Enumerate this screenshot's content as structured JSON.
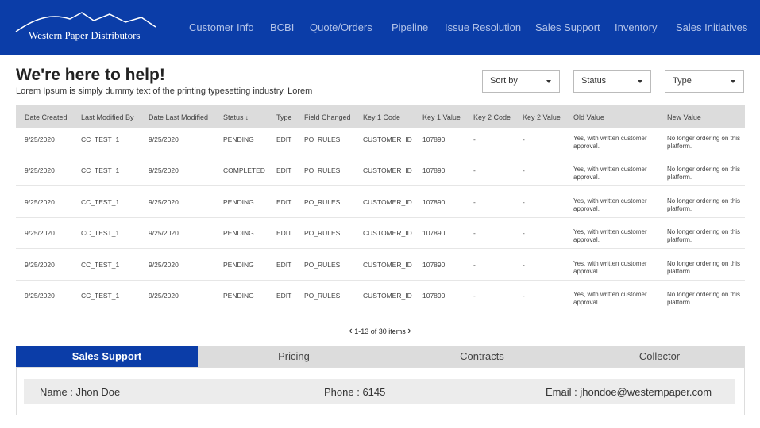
{
  "header": {
    "logo": "Western Paper Distributors",
    "nav": [
      "Customer Info",
      "BCBI",
      "Quote/Orders",
      "Pipeline",
      "Issue Resolution",
      "Sales Support",
      "Inventory",
      "Sales Initiatives"
    ]
  },
  "page": {
    "title": "We're here to help!",
    "subtitle": "Lorem Ipsum is simply dummy text of the printing typesetting industry. Lorem"
  },
  "filters": [
    "Sort by",
    "Status",
    "Type"
  ],
  "table": {
    "columns": [
      "Date Created",
      "Last Modified By",
      "Date Last Modified",
      "Status",
      "Type",
      "Field Changed",
      "Key 1 Code",
      "Key 1 Value",
      "Key 2 Code",
      "Key 2 Value",
      "Old Value",
      "New Value"
    ],
    "rows": [
      [
        "9/25/2020",
        "CC_TEST_1",
        "9/25/2020",
        "PENDING",
        "EDIT",
        "PO_RULES",
        "CUSTOMER_ID",
        "107890",
        "-",
        "-",
        "Yes, with written customer approval.",
        "No longer ordering on this platform."
      ],
      [
        "9/25/2020",
        "CC_TEST_1",
        "9/25/2020",
        "COMPLETED",
        "EDIT",
        "PO_RULES",
        "CUSTOMER_ID",
        "107890",
        "-",
        "-",
        "Yes, with written customer approval.",
        "No longer ordering on this platform."
      ],
      [
        "9/25/2020",
        "CC_TEST_1",
        "9/25/2020",
        "PENDING",
        "EDIT",
        "PO_RULES",
        "CUSTOMER_ID",
        "107890",
        "-",
        "-",
        "Yes, with written customer approval.",
        "No longer ordering on this platform."
      ],
      [
        "9/25/2020",
        "CC_TEST_1",
        "9/25/2020",
        "PENDING",
        "EDIT",
        "PO_RULES",
        "CUSTOMER_ID",
        "107890",
        "-",
        "-",
        "Yes, with written customer approval.",
        "No longer ordering on this platform."
      ],
      [
        "9/25/2020",
        "CC_TEST_1",
        "9/25/2020",
        "PENDING",
        "EDIT",
        "PO_RULES",
        "CUSTOMER_ID",
        "107890",
        "-",
        "-",
        "Yes, with written customer approval.",
        "No longer ordering on this platform."
      ],
      [
        "9/25/2020",
        "CC_TEST_1",
        "9/25/2020",
        "PENDING",
        "EDIT",
        "PO_RULES",
        "CUSTOMER_ID",
        "107890",
        "-",
        "-",
        "Yes, with written customer approval.",
        "No longer ordering on this platform."
      ]
    ]
  },
  "pagination": "1-13 of 30 items",
  "tabs": [
    "Sales Support",
    "Pricing",
    "Contracts",
    "Collector"
  ],
  "contact": {
    "name_label": "Name :",
    "name": "Jhon Doe",
    "phone_label": "Phone :",
    "phone": "6145",
    "email_label": "Email :",
    "email": "jhondoe@westernpaper.com"
  }
}
